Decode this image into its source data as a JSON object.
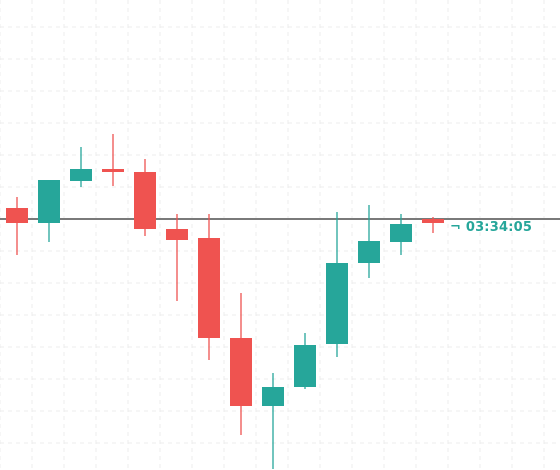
{
  "chart_data": {
    "type": "candlestick",
    "grid": true,
    "price_line": {
      "value": 0
    },
    "countdown_text": "¬ 03:34:05",
    "candles": [
      {
        "open": 11,
        "close": -4,
        "high": 22,
        "low": -36
      },
      {
        "open": -4,
        "close": 39,
        "high": 39,
        "low": -23
      },
      {
        "open": 38,
        "close": 50,
        "high": 72,
        "low": 32
      },
      {
        "open": 50,
        "close": 47,
        "high": 85,
        "low": 33
      },
      {
        "open": 47,
        "close": -10,
        "high": 60,
        "low": -17
      },
      {
        "open": -10,
        "close": -21,
        "high": 5,
        "low": -82
      },
      {
        "open": -19,
        "close": -119,
        "high": 5,
        "low": -141
      },
      {
        "open": -119,
        "close": -187,
        "high": -74,
        "low": -216
      },
      {
        "open": -187,
        "close": -168,
        "high": -154,
        "low": -250
      },
      {
        "open": -168,
        "close": -126,
        "high": -114,
        "low": -170
      },
      {
        "open": -125,
        "close": -44,
        "high": 7,
        "low": -138
      },
      {
        "open": -44,
        "close": -22,
        "high": 14,
        "low": -59
      },
      {
        "open": -23,
        "close": -5,
        "high": 5,
        "low": -36
      },
      {
        "open": 0,
        "close": -4,
        "high": 2,
        "low": -14
      }
    ],
    "colors": {
      "up": "#26a69a",
      "down": "#ef5350",
      "price_line": "#7a7a7a",
      "grid": "#ececec",
      "countdown": "#26a69a"
    }
  }
}
